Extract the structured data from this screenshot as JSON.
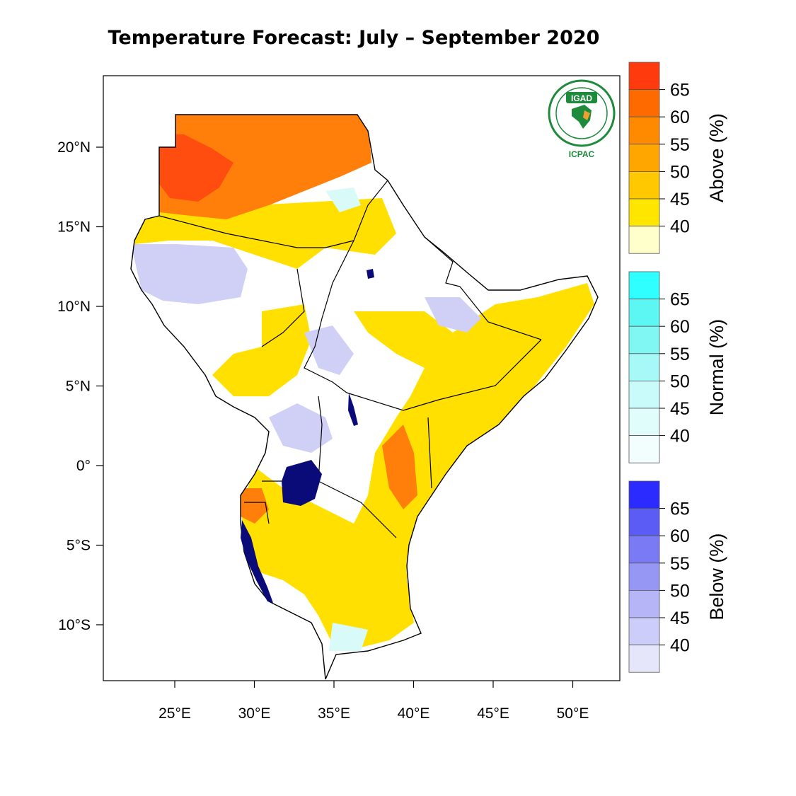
{
  "map": {
    "title": "Temperature Forecast:  July – September 2020",
    "lon_ticks": [
      "25°E",
      "30°E",
      "35°E",
      "40°E",
      "45°E",
      "50°E"
    ],
    "lat_ticks": [
      "20°N",
      "15°N",
      "10°N",
      "5°N",
      "0°",
      "5°S",
      "10°S"
    ],
    "logo": {
      "acronym": "IGAD",
      "org": "ICPAC",
      "color": "#1e8a3c"
    },
    "legends": [
      {
        "title": "Above (%)",
        "labels": [
          "65",
          "60",
          "55",
          "50",
          "45",
          "40"
        ],
        "colors": [
          "#ff3a0d",
          "#ff6a00",
          "#ff8a00",
          "#ffa600",
          "#ffc800",
          "#ffe600",
          "#ffffcc"
        ]
      },
      {
        "title": "Normal (%)",
        "labels": [
          "65",
          "60",
          "55",
          "50",
          "45",
          "40"
        ],
        "colors": [
          "#30ffff",
          "#5cf7f3",
          "#80f7f3",
          "#a6f9f6",
          "#c8fbf9",
          "#e0fdfc",
          "#f2fefe"
        ]
      },
      {
        "title": "Below (%)",
        "labels": [
          "65",
          "60",
          "55",
          "50",
          "45",
          "40"
        ],
        "colors": [
          "#2b2bff",
          "#5b5bf5",
          "#7a7af5",
          "#9696f5",
          "#b5b5f7",
          "#cdcdf9",
          "#e6e6fb"
        ]
      }
    ],
    "colors": {
      "above_high": "#ff4d10",
      "above_mid": "#ff7f0a",
      "above_low": "#ffe000",
      "normal": "#d8faf8",
      "below": "#d0d0f7",
      "lake": "#0a0a78"
    }
  }
}
